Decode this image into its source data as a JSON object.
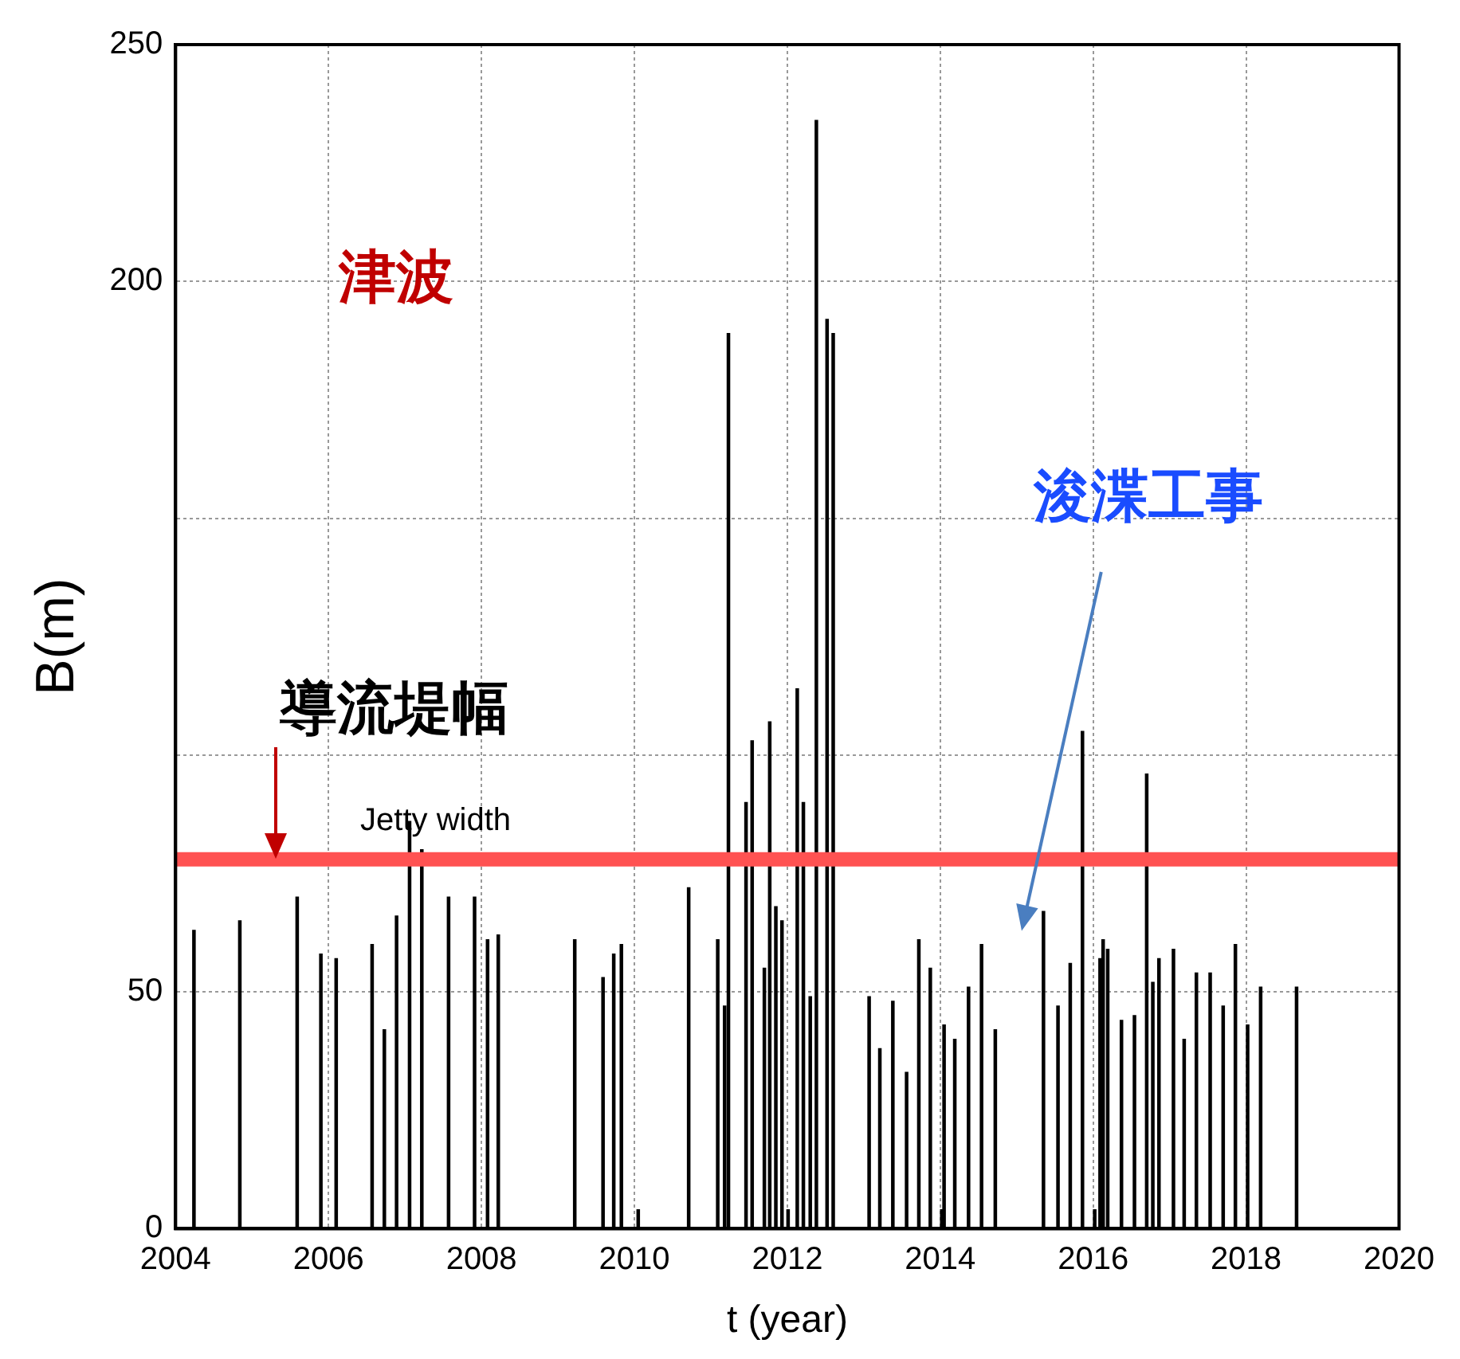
{
  "chart_data": {
    "type": "bar",
    "xlabel": "t (year)",
    "ylabel": "B(m)",
    "x": [
      2004.24,
      2004.84,
      2005.59,
      2005.9,
      2006.08,
      2006.1,
      2006.57,
      2006.73,
      2006.89,
      2007.06,
      2007.22,
      2007.57,
      2007.91,
      2008.06,
      2008.08,
      2008.22,
      2009.22,
      2009.59,
      2009.73,
      2009.83,
      2010.05,
      2010.71,
      2011.09,
      2011.18,
      2011.23,
      2011.46,
      2011.54,
      2011.7,
      2011.77,
      2011.85,
      2011.93,
      2012.01,
      2012.13,
      2012.21,
      2012.3,
      2012.38,
      2012.52,
      2012.6,
      2013.07,
      2013.21,
      2013.38,
      2013.56,
      2013.72,
      2013.87,
      2014.02,
      2014.05,
      2014.19,
      2014.37,
      2014.54,
      2014.72,
      2015.35,
      2015.54,
      2015.7,
      2015.86,
      2016.02,
      2016.09,
      2016.13,
      2016.19,
      2016.37,
      2016.54,
      2016.7,
      2016.78,
      2016.86,
      2017.05,
      2017.19,
      2017.35,
      2017.53,
      2017.7,
      2017.86,
      2018.02,
      2018.19,
      2018.66
    ],
    "values": [
      63,
      65,
      70,
      58,
      null,
      57,
      60,
      42,
      66,
      86,
      80,
      70,
      70,
      null,
      61,
      62,
      61,
      53,
      58,
      60,
      4,
      72,
      61,
      47,
      189,
      90,
      103,
      55,
      107,
      68,
      65,
      4,
      114,
      90,
      49,
      234,
      192,
      189,
      49,
      38,
      48,
      33,
      61,
      55,
      4,
      43,
      40,
      51,
      60,
      42,
      67,
      47,
      56,
      105,
      4,
      57,
      61,
      59,
      44,
      45,
      96,
      52,
      57,
      59,
      40,
      54,
      54,
      47,
      60,
      43,
      51,
      51
    ],
    "color": "#000000",
    "xlim": [
      2004,
      2020
    ],
    "xticks": [
      2004,
      2006,
      2008,
      2010,
      2012,
      2014,
      2016,
      2018,
      2020
    ],
    "ylim": [
      0,
      250
    ],
    "yticks": [
      0,
      50,
      {
        "value": 100,
        "label": null
      },
      {
        "value": 150,
        "label": null
      },
      200,
      250
    ],
    "grid": true,
    "ref_lines": [
      {
        "axis": "y",
        "value": 78,
        "label": "Jetty width",
        "color": "#ff5252"
      }
    ],
    "annotations": [
      "津波",
      "浚渫工事",
      {
        "text": "導流堤幅",
        "x": 2005.3,
        "y": 78
      }
    ]
  }
}
